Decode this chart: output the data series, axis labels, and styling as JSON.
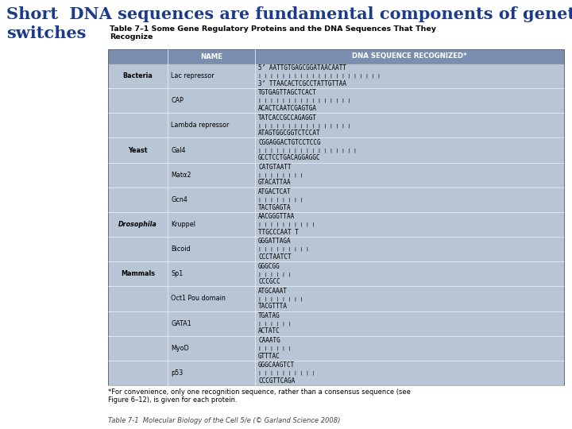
{
  "title_line1": "Short  DNA sequences are fundamental components of genetic",
  "title_line2": "switches",
  "title_color": "#1a3a8a",
  "title_fontsize": 15,
  "table_caption": "Table 7–1 Some Gene Regulatory Proteins and the DNA Sequences That They\nRecognize",
  "table_caption_fontsize": 6.8,
  "bg_color": "#b8c5d5",
  "header_bg": "#7a8faf",
  "col_headers": [
    "NAME",
    "DNA SEQUENCE RECOGNIZED*"
  ],
  "col_header_fontsize": 6.2,
  "rows": [
    [
      "Bacteria",
      "Lac repressor",
      "5’ AATTGTGAGCGGATAACAATT\n| | | | | | | | | | | | | | | | | | | | |\n3’ TTAACACTCGCCTATTGTTAA"
    ],
    [
      "",
      "CAP",
      "TGTGAGTTAGCTCACT\n| | | | | | | | | | | | | | | |\nACACTCAATCGAGTGA"
    ],
    [
      "",
      "Lambda repressor",
      "TATCACCGCCAGAGGT\n| | | | | | | | | | | | | | | |\nATAGTGGCGGTCTCCAT"
    ],
    [
      "Yeast",
      "Gal4",
      "CGGAGGACTGTCCTCCG\n| | | | | | | | | | | | | | | | |\nGCCTCCTGACAGGAGGC"
    ],
    [
      "",
      "Matα2",
      "CATGTAATT\n| | | | | | | |\nGTACATTAA"
    ],
    [
      "",
      "Gcn4",
      "ATGACTCAT\n| | | | | | | |\nTACTGAGTA"
    ],
    [
      "Drosophila",
      "Kruppel",
      "AACGGGTTAA\n| | | | | | | | | |\nTTGCCCAAT T"
    ],
    [
      "",
      "Bicoid",
      "GGGATTAGA\n| | | | | | | | |\nCCCTAATCT"
    ],
    [
      "Mammals",
      "Sp1",
      "GGGCGG\n| | | | | |\nCCCGCC"
    ],
    [
      "",
      "Oct1 Pou domain",
      "ATGCAAAT\n| | | | | | | |\nTACGTTTA"
    ],
    [
      "",
      "GATA1",
      "TGATAG\n| | | | | |\nACTATC"
    ],
    [
      "",
      "MyoD",
      "CAAATG\n| | | | | |\nGTTTAC"
    ],
    [
      "",
      "p53",
      "GGGCAAGTCT\n| | | | | | | | | |\nCCCGTTCAGA"
    ]
  ],
  "italic_col0": [
    "Drosophila"
  ],
  "row_fontsize": 5.8,
  "seq_fontsize": 5.5,
  "connector_fontsize": 4.5,
  "footnote": "*For convenience, only one recognition sequence, rather than a consensus sequence (see\nFigure 6–12), is given for each protein.",
  "footer": "Table 7-1  Molecular Biology of the Cell 5/e (© Garland Science 2008)",
  "footnote_fontsize": 6.0,
  "footer_fontsize": 6.0,
  "white": "#ffffff",
  "figw": 7.2,
  "figh": 5.4,
  "dpi": 100
}
